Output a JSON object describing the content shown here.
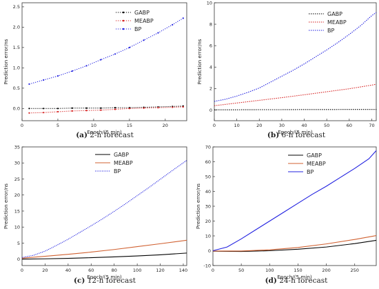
{
  "chart_data": [
    {
      "type": "line",
      "caption_label": "(a)",
      "caption_text": " 2-h forecast",
      "xlabel": "Epoch/(5 min)",
      "ylabel": "Prediction error/ns",
      "xlim": [
        0,
        23
      ],
      "ylim": [
        -0.3,
        2.6
      ],
      "xticks": [
        0,
        5,
        10,
        15,
        20
      ],
      "yticks": [
        0.0,
        0.5,
        1.0,
        1.5,
        2.0,
        2.5
      ],
      "ytick_decimals": 1,
      "legend": "top-right",
      "series": [
        {
          "name": "GABP",
          "color": "#000000",
          "dash": "1.2,1.8",
          "marker": true,
          "x": [
            1,
            3,
            5,
            7,
            9,
            11,
            13,
            15,
            17,
            19,
            21,
            22.5
          ],
          "y": [
            0.0,
            0.0,
            0.0,
            0.01,
            0.01,
            0.01,
            0.02,
            0.02,
            0.03,
            0.04,
            0.05,
            0.06
          ]
        },
        {
          "name": "MEABP",
          "color": "#d62020",
          "dash": "1.2,1.8",
          "marker": true,
          "x": [
            1,
            3,
            5,
            7,
            9,
            11,
            13,
            15,
            17,
            19,
            21,
            22.5
          ],
          "y": [
            -0.11,
            -0.1,
            -0.08,
            -0.06,
            -0.05,
            -0.04,
            -0.02,
            0.0,
            0.01,
            0.02,
            0.03,
            0.04
          ]
        },
        {
          "name": "BP",
          "color": "#2020e0",
          "dash": "1.2,1.8",
          "marker": true,
          "x": [
            1,
            3,
            5,
            7,
            9,
            11,
            13,
            15,
            17,
            19,
            21,
            22.5
          ],
          "y": [
            0.6,
            0.7,
            0.8,
            0.92,
            1.05,
            1.2,
            1.34,
            1.5,
            1.68,
            1.86,
            2.06,
            2.22
          ]
        }
      ]
    },
    {
      "type": "line",
      "caption_label": "(b)",
      "caption_text": " 6-h forecast",
      "xlabel": "Epoch/(5 min)",
      "ylabel": "Prediction error/ns",
      "xlim": [
        0,
        72
      ],
      "ylim": [
        -1,
        10
      ],
      "xticks": [
        0,
        10,
        20,
        30,
        40,
        50,
        60,
        70
      ],
      "yticks": [
        0,
        2,
        4,
        6,
        8,
        10
      ],
      "ytick_decimals": 0,
      "legend": "top-right",
      "series": [
        {
          "name": "GABP",
          "color": "#000000",
          "dash": "1.5,1.5",
          "marker": false,
          "x": [
            0,
            10,
            20,
            30,
            40,
            50,
            60,
            70,
            72
          ],
          "y": [
            0.02,
            0.02,
            0.03,
            0.03,
            0.04,
            0.04,
            0.05,
            0.05,
            0.05
          ]
        },
        {
          "name": "MEABP",
          "color": "#d62020",
          "dash": "1.5,1.5",
          "marker": false,
          "x": [
            0,
            10,
            20,
            30,
            40,
            50,
            60,
            70,
            72
          ],
          "y": [
            0.4,
            0.65,
            0.9,
            1.15,
            1.42,
            1.7,
            1.98,
            2.32,
            2.4
          ]
        },
        {
          "name": "BP",
          "color": "#2020e0",
          "dash": "1.5,1.5",
          "marker": false,
          "x": [
            0,
            5,
            10,
            15,
            20,
            25,
            30,
            35,
            40,
            45,
            50,
            55,
            60,
            65,
            70,
            72
          ],
          "y": [
            0.8,
            1.0,
            1.3,
            1.65,
            2.05,
            2.6,
            3.15,
            3.7,
            4.3,
            4.95,
            5.6,
            6.3,
            7.05,
            7.85,
            8.8,
            9.1
          ]
        }
      ]
    },
    {
      "type": "line",
      "caption_label": "(c)",
      "caption_text": " 12-h forecast",
      "xlabel": "Epoch/(5 min)",
      "ylabel": "Prediction error/ns",
      "xlim": [
        0,
        143
      ],
      "ylim": [
        -2,
        35
      ],
      "xticks": [
        0,
        20,
        40,
        60,
        80,
        100,
        120,
        140
      ],
      "yticks": [
        0,
        5,
        10,
        15,
        20,
        25,
        30,
        35
      ],
      "ytick_decimals": 0,
      "legend": "top-center",
      "series": [
        {
          "name": "GABP",
          "color": "#000000",
          "dash": "",
          "marker": false,
          "x": [
            0,
            20,
            40,
            60,
            80,
            100,
            120,
            143
          ],
          "y": [
            0.0,
            0.1,
            0.25,
            0.45,
            0.7,
            1.0,
            1.35,
            1.9
          ]
        },
        {
          "name": "MEABP",
          "color": "#d06030",
          "dash": "",
          "marker": false,
          "x": [
            0,
            20,
            40,
            60,
            80,
            100,
            120,
            143
          ],
          "y": [
            0.3,
            0.9,
            1.5,
            2.2,
            3.0,
            3.9,
            4.8,
            5.9
          ]
        },
        {
          "name": "BP",
          "color": "#2020e0",
          "dash": "1.2,1.3",
          "marker": false,
          "x": [
            0,
            10,
            20,
            30,
            40,
            50,
            60,
            70,
            80,
            90,
            100,
            110,
            120,
            130,
            143
          ],
          "y": [
            0.5,
            1.2,
            2.5,
            4.3,
            6.2,
            8.3,
            10.4,
            12.6,
            14.9,
            17.3,
            19.8,
            22.3,
            24.9,
            27.5,
            30.8
          ]
        }
      ]
    },
    {
      "type": "line",
      "caption_label": "(d)",
      "caption_text": " 24-h forecast",
      "xlabel": "Epoch/(5 min)",
      "ylabel": "Prediction error/ns",
      "xlim": [
        0,
        288
      ],
      "ylim": [
        -10,
        70
      ],
      "xticks": [
        0,
        50,
        100,
        150,
        200,
        250
      ],
      "yticks": [
        -10,
        0,
        10,
        20,
        30,
        40,
        50,
        60,
        70
      ],
      "ytick_decimals": 0,
      "legend": "top-center",
      "series": [
        {
          "name": "GABP",
          "color": "#000000",
          "dash": "",
          "marker": false,
          "x": [
            0,
            50,
            100,
            150,
            200,
            250,
            288
          ],
          "y": [
            -0.3,
            -0.5,
            0.0,
            1.0,
            2.5,
            4.8,
            7.0
          ]
        },
        {
          "name": "MEABP",
          "color": "#d06030",
          "dash": "",
          "marker": false,
          "x": [
            0,
            50,
            100,
            150,
            200,
            250,
            288
          ],
          "y": [
            -0.2,
            -0.2,
            0.6,
            2.2,
            4.6,
            7.6,
            10.2
          ]
        },
        {
          "name": "BP",
          "color": "#2020e0",
          "dash": "",
          "marker": false,
          "x": [
            0,
            25,
            50,
            75,
            100,
            125,
            150,
            175,
            200,
            225,
            250,
            275,
            288
          ],
          "y": [
            0.0,
            2.5,
            8.0,
            14.0,
            20.0,
            26.0,
            32.0,
            38.0,
            43.5,
            49.5,
            55.5,
            62.0,
            67.5
          ]
        }
      ]
    }
  ]
}
